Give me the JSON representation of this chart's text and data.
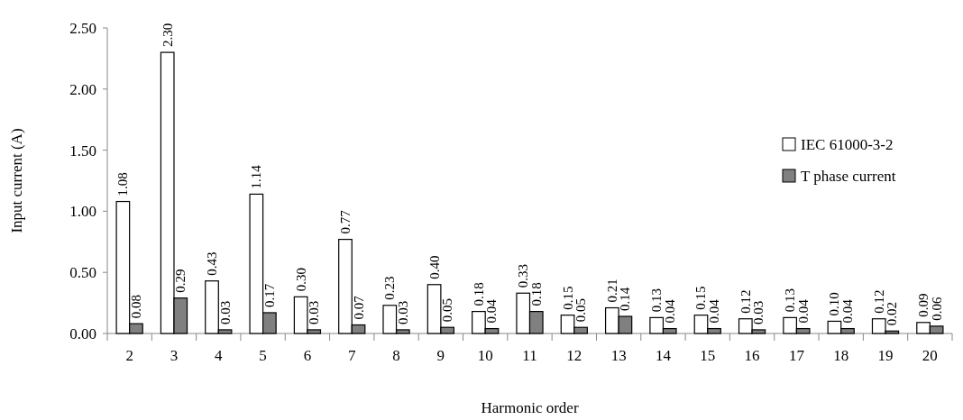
{
  "chart_data": {
    "type": "bar",
    "xlabel": "Harmonic order",
    "ylabel": "Input current (A)",
    "categories": [
      "2",
      "3",
      "4",
      "5",
      "6",
      "7",
      "8",
      "9",
      "10",
      "11",
      "12",
      "13",
      "14",
      "15",
      "16",
      "17",
      "18",
      "19",
      "20"
    ],
    "series": [
      {
        "name": "IEC 61000-3-2",
        "color": "#ffffff",
        "values": [
          1.08,
          2.3,
          0.43,
          1.14,
          0.3,
          0.77,
          0.23,
          0.4,
          0.18,
          0.33,
          0.15,
          0.21,
          0.13,
          0.15,
          0.12,
          0.13,
          0.1,
          0.12,
          0.09
        ],
        "value_labels": [
          "1.08",
          "2.30",
          "0.43",
          "1.14",
          "0.30",
          "0.77",
          "0.23",
          "0.40",
          "0.18",
          "0.33",
          "0.15",
          "0.21",
          "0.13",
          "0.15",
          "0.12",
          "0.13",
          "0.10",
          "0.12",
          "0.09"
        ]
      },
      {
        "name": "T phase current",
        "color": "#808080",
        "values": [
          0.08,
          0.29,
          0.03,
          0.17,
          0.03,
          0.07,
          0.03,
          0.05,
          0.04,
          0.18,
          0.05,
          0.14,
          0.04,
          0.04,
          0.03,
          0.04,
          0.04,
          0.02,
          0.06
        ],
        "value_labels": [
          "0.08",
          "0.29",
          "0.03",
          "0.17",
          "0.03",
          "0.07",
          "0.03",
          "0.05",
          "0.04",
          "0.18",
          "0.05",
          "0.14",
          "0.04",
          "0.04",
          "0.03",
          "0.04",
          "0.04",
          "0.02",
          "0.06"
        ]
      }
    ],
    "ylim": [
      0,
      2.5
    ],
    "yticks": [
      {
        "value": 0,
        "label": "0.00"
      },
      {
        "value": 0.5,
        "label": "0.50"
      },
      {
        "value": 1,
        "label": "1.00"
      },
      {
        "value": 1.5,
        "label": "1.50"
      },
      {
        "value": 2,
        "label": "2.00"
      },
      {
        "value": 2.5,
        "label": "2.50"
      }
    ],
    "legend": "right",
    "grid": false
  }
}
